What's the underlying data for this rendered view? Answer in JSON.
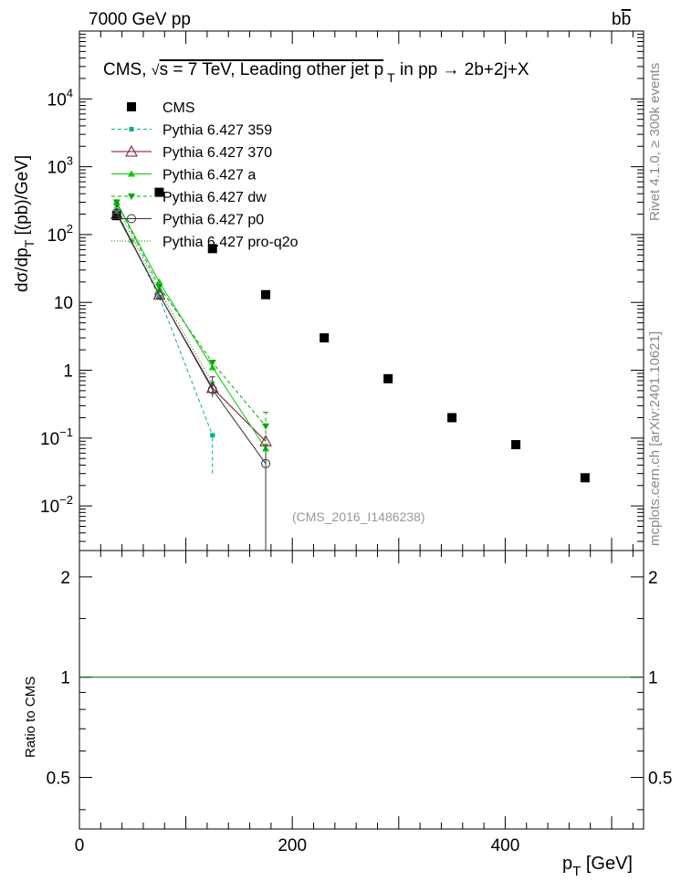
{
  "header": {
    "left": "7000 GeV pp",
    "right_pre": "b",
    "right_bar": "b"
  },
  "side": {
    "rivet": "Rivet 4.1.0, ≥ 300k events",
    "mcplots": "mcplots.cern.ch [arXiv:2401.10621]"
  },
  "chart_data": {
    "type": "scatter",
    "title_parts": {
      "pre": "CMS,  ",
      "sqrt": "√",
      "post": "s = 7 TeV, Leading other jet p",
      "sub": "T",
      "tail": " in pp →  2b+2j+X"
    },
    "ylabel_parts": {
      "main": "dσ/dp",
      "sub": "T",
      "tail": " [(pb)/GeV]"
    },
    "xlabel_parts": {
      "main": "p",
      "sub": "T",
      "tail": " [GeV]"
    },
    "ratio_ylabel": "Ratio to CMS",
    "analysis_tag": "(CMS_2016_I1486238)",
    "xlim": [
      0,
      530
    ],
    "ylim": [
      0.0022,
      100000
    ],
    "ratio_ylim": [
      0.35,
      2.4
    ],
    "x_ticks": [
      "0",
      "200",
      "400"
    ],
    "x_tick_values": [
      0,
      200,
      400
    ],
    "y_tick_labels": [
      {
        "v": 10000,
        "base": "10",
        "exp": "4"
      },
      {
        "v": 1000,
        "base": "10",
        "exp": "3"
      },
      {
        "v": 100,
        "base": "10",
        "exp": "2"
      },
      {
        "v": 10,
        "base": "10",
        "exp": ""
      },
      {
        "v": 1,
        "base": "1",
        "exp": ""
      },
      {
        "v": 0.1,
        "base": "10",
        "exp": "−1"
      },
      {
        "v": 0.01,
        "base": "10",
        "exp": "−2"
      }
    ],
    "ratio_ticks": [
      {
        "v": 2,
        "label": "2"
      },
      {
        "v": 1,
        "label": "1"
      },
      {
        "v": 0.5,
        "label": "0.5"
      }
    ],
    "series": [
      {
        "name": "CMS",
        "color": "#000000",
        "marker": "square",
        "line": "none",
        "x": [
          35,
          75,
          125,
          175,
          230,
          290,
          350,
          410,
          475
        ],
        "y": [
          190,
          420,
          62,
          13,
          3.0,
          0.75,
          0.2,
          0.08,
          0.026
        ]
      },
      {
        "name": "Pythia 6.427 359",
        "color": "#00b28e",
        "marker": "smallsquare",
        "line": "dashed",
        "x": [
          35,
          75,
          125
        ],
        "y": [
          220,
          12,
          0.11
        ]
      },
      {
        "name": "Pythia 6.427 370",
        "color": "#7a1230",
        "marker": "triangle-open",
        "line": "solid",
        "x": [
          35,
          75,
          125,
          175
        ],
        "y": [
          200,
          13,
          0.55,
          0.09
        ]
      },
      {
        "name": "Pythia 6.427 a",
        "color": "#00cc00",
        "marker": "triangle",
        "line": "solid",
        "x": [
          35,
          75,
          125,
          175
        ],
        "y": [
          300,
          20,
          1.1,
          0.07
        ]
      },
      {
        "name": "Pythia 6.427 dw",
        "color": "#00a800",
        "marker": "triangle-down",
        "line": "dashed",
        "x": [
          35,
          75,
          125,
          175
        ],
        "y": [
          300,
          17,
          1.3,
          0.15
        ]
      },
      {
        "name": "Pythia 6.427 p0",
        "color": "#333333",
        "marker": "circle-open",
        "line": "solid",
        "x": [
          35,
          75,
          125,
          175
        ],
        "y": [
          210,
          13,
          0.52,
          0.042
        ]
      },
      {
        "name": "Pythia 6.427 pro-q2o",
        "color": "#007a00",
        "marker": "star",
        "line": "dotted",
        "x": [
          35,
          75,
          125
        ],
        "y": [
          260,
          15,
          0.65
        ]
      }
    ],
    "ratio_series": [
      {
        "name": "CMS",
        "color": "#006400",
        "x": [
          0,
          530
        ],
        "y": [
          1,
          1
        ]
      }
    ]
  }
}
